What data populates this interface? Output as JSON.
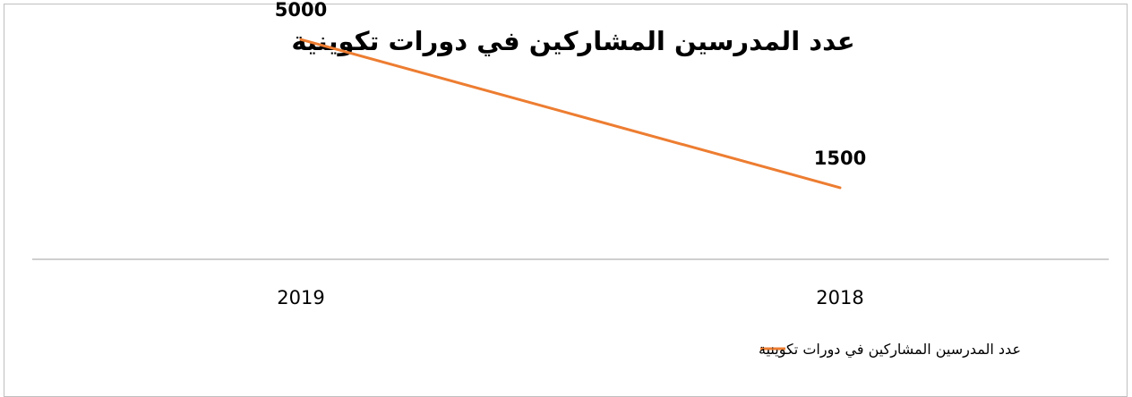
{
  "chart_data": {
    "type": "line",
    "title": "عدد المدرسين المشاركين في دورات تكوينية",
    "categories": [
      "2018",
      "2019"
    ],
    "series": [
      {
        "name": "عدد المدرسين المشاركين في دورات تكوينية",
        "values": [
          1500,
          5000
        ],
        "color": "#ED7D31"
      }
    ],
    "data_labels": [
      "1500",
      "5000"
    ],
    "x_axis_reversed": true,
    "ylim": [
      0,
      6000
    ],
    "grid": false,
    "legend": "bottom"
  }
}
